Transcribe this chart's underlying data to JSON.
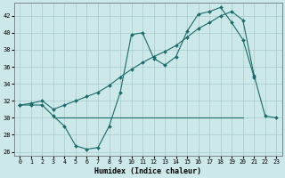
{
  "xlabel": "Humidex (Indice chaleur)",
  "background_color": "#cce8e8",
  "grid_color": "#aacccc",
  "line_color": "#1a6b6b",
  "xlim": [
    -0.5,
    23.5
  ],
  "ylim": [
    25.5,
    43.5
  ],
  "yticks": [
    26,
    28,
    30,
    32,
    34,
    36,
    38,
    40,
    42
  ],
  "xticks": [
    0,
    1,
    2,
    3,
    4,
    5,
    6,
    7,
    8,
    9,
    10,
    11,
    12,
    13,
    14,
    15,
    16,
    17,
    18,
    19,
    20,
    21,
    22,
    23
  ],
  "line1_x": [
    0,
    1,
    2,
    3,
    4,
    5,
    6,
    7,
    8,
    9,
    10,
    11,
    12,
    13,
    14,
    15,
    16,
    17,
    18,
    19,
    20,
    21
  ],
  "line1_y": [
    31.5,
    31.5,
    31.5,
    30.2,
    29.0,
    26.7,
    26.3,
    26.5,
    29.0,
    33.0,
    39.8,
    40.0,
    37.0,
    36.2,
    37.2,
    40.2,
    42.2,
    42.5,
    43.0,
    41.2,
    39.2,
    34.8
  ],
  "line2_x": [
    3,
    15,
    20
  ],
  "line2_y": [
    30.0,
    30.0,
    30.0
  ],
  "line3_x": [
    0,
    1,
    2,
    3,
    4,
    5,
    6,
    7,
    8,
    9,
    10,
    11,
    12,
    13,
    14,
    15,
    16,
    17,
    18,
    19,
    20,
    21,
    22,
    23
  ],
  "line3_y": [
    31.5,
    31.7,
    32.0,
    31.0,
    31.5,
    32.0,
    32.5,
    33.0,
    33.8,
    34.8,
    35.7,
    36.5,
    37.2,
    37.8,
    38.5,
    39.5,
    40.5,
    41.2,
    42.0,
    42.5,
    41.5,
    35.0,
    30.2,
    30.0
  ]
}
